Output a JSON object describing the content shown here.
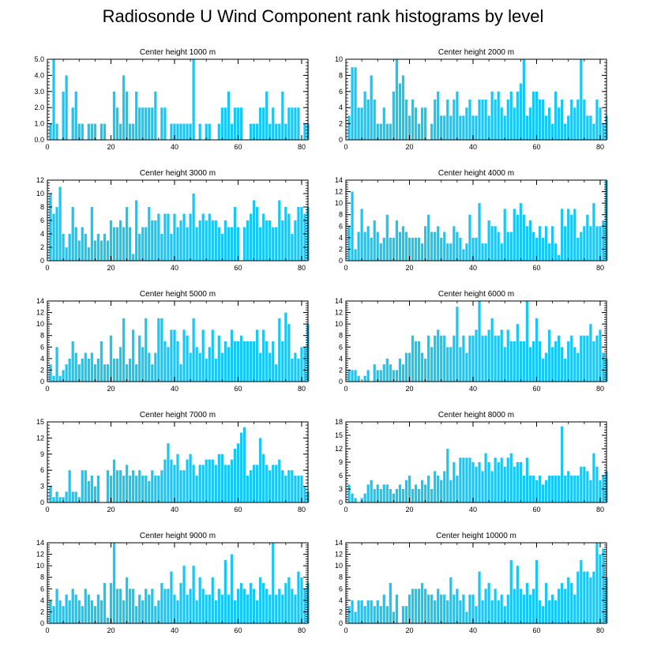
{
  "figure_title": "Radiosonde U Wind Component rank histograms by level",
  "bar_color": "#19C6F4",
  "chart_data": [
    {
      "type": "bar",
      "title": "Center height 1000 m",
      "xlim": [
        0,
        82
      ],
      "ylim": [
        0,
        5
      ],
      "yticks": [
        0,
        1,
        2,
        3,
        4,
        5
      ],
      "ytick_labels": [
        "0.0",
        "1.0",
        "2.0",
        "3.0",
        "4.0",
        "5.0"
      ],
      "xticks": [
        0,
        20,
        40,
        60,
        80
      ],
      "xtick_labels": [
        "0",
        "20",
        "40",
        "60",
        "80"
      ],
      "values": [
        1,
        5,
        1,
        0,
        3,
        4,
        0,
        2,
        3,
        1,
        1,
        0,
        1,
        1,
        1,
        0,
        1,
        1,
        0,
        0,
        3,
        2,
        1,
        4,
        3,
        1,
        1,
        3,
        2,
        2,
        2,
        2,
        2,
        3,
        0,
        2,
        2,
        0,
        1,
        1,
        1,
        1,
        1,
        1,
        1,
        5,
        0,
        1,
        0,
        1,
        1,
        0,
        0,
        1,
        2,
        2,
        3,
        1,
        2,
        2,
        2,
        0,
        0,
        1,
        1,
        1,
        2,
        2,
        3,
        1,
        2,
        1,
        1,
        3,
        1,
        2,
        2,
        2,
        2,
        0,
        1,
        1
      ]
    },
    {
      "type": "bar",
      "title": "Center height 2000 m",
      "xlim": [
        0,
        82
      ],
      "ylim": [
        0,
        10
      ],
      "yticks": [
        0,
        2,
        4,
        6,
        8,
        10
      ],
      "ytick_labels": [
        "0",
        "2",
        "4",
        "6",
        "8",
        "10"
      ],
      "xticks": [
        0,
        20,
        40,
        60,
        80
      ],
      "xtick_labels": [
        "0",
        "20",
        "40",
        "60",
        "80"
      ],
      "values": [
        3,
        9,
        9,
        4,
        4,
        6,
        5,
        8,
        5,
        2,
        2,
        4,
        2,
        2,
        6,
        10,
        7,
        8,
        5,
        3,
        5,
        4,
        2,
        4,
        4,
        0,
        2,
        5,
        6,
        3,
        3,
        5,
        3,
        5,
        6,
        3,
        3,
        4,
        5,
        3,
        3,
        5,
        5,
        5,
        3,
        6,
        5,
        6,
        4,
        3,
        5,
        6,
        4,
        6,
        7,
        10,
        3,
        4,
        6,
        6,
        5,
        5,
        3,
        4,
        2,
        6,
        4,
        5,
        2,
        3,
        5,
        4,
        5,
        10,
        5,
        3,
        3,
        2,
        5,
        4,
        2,
        3
      ]
    },
    {
      "type": "bar",
      "title": "Center height 3000 m",
      "xlim": [
        0,
        82
      ],
      "ylim": [
        0,
        12
      ],
      "yticks": [
        0,
        2,
        4,
        6,
        8,
        10,
        12
      ],
      "ytick_labels": [
        "0",
        "2",
        "4",
        "6",
        "8",
        "10",
        "12"
      ],
      "xticks": [
        0,
        20,
        40,
        60,
        80
      ],
      "xtick_labels": [
        "0",
        "20",
        "40",
        "60",
        "80"
      ],
      "values": [
        10,
        7,
        8,
        11,
        4,
        2,
        4,
        8,
        5,
        3,
        5,
        4,
        2,
        8,
        3,
        4,
        3,
        4,
        3,
        6,
        5,
        5,
        6,
        5,
        8,
        5,
        1,
        9,
        4,
        5,
        5,
        8,
        6,
        6,
        7,
        4,
        7,
        7,
        4,
        7,
        5,
        6,
        7,
        5,
        7,
        10,
        5,
        6,
        7,
        6,
        7,
        6,
        6,
        5,
        4,
        6,
        5,
        5,
        8,
        5,
        0,
        5,
        6,
        7,
        9,
        8,
        5,
        7,
        6,
        6,
        5,
        5,
        9,
        6,
        8,
        7,
        4,
        6,
        8,
        8,
        7,
        8
      ]
    },
    {
      "type": "bar",
      "title": "Center height 4000 m",
      "xlim": [
        0,
        82
      ],
      "ylim": [
        0,
        14
      ],
      "yticks": [
        0,
        2,
        4,
        6,
        8,
        10,
        12,
        14
      ],
      "ytick_labels": [
        "0",
        "2",
        "4",
        "6",
        "8",
        "10",
        "12",
        "14"
      ],
      "xticks": [
        0,
        20,
        40,
        60,
        80
      ],
      "xtick_labels": [
        "0",
        "20",
        "40",
        "60",
        "80"
      ],
      "values": [
        6,
        12,
        2,
        5,
        9,
        5,
        6,
        4,
        7,
        5,
        3,
        4,
        8,
        4,
        4,
        7,
        5,
        6,
        5,
        4,
        4,
        4,
        4,
        3,
        6,
        8,
        5,
        5,
        6,
        4,
        5,
        3,
        3,
        6,
        5,
        4,
        2,
        3,
        8,
        4,
        4,
        10,
        3,
        3,
        7,
        6,
        6,
        5,
        3,
        9,
        5,
        5,
        9,
        8,
        10,
        8,
        6,
        7,
        5,
        4,
        6,
        4,
        6,
        3,
        6,
        3,
        1,
        9,
        6,
        9,
        8,
        9,
        4,
        5,
        6,
        8,
        6,
        10,
        6,
        6,
        7,
        14
      ]
    },
    {
      "type": "bar",
      "title": "Center height 5000 m",
      "xlim": [
        0,
        82
      ],
      "ylim": [
        0,
        14
      ],
      "yticks": [
        0,
        2,
        4,
        6,
        8,
        10,
        12,
        14
      ],
      "ytick_labels": [
        "0",
        "2",
        "4",
        "6",
        "8",
        "10",
        "12",
        "14"
      ],
      "xticks": [
        0,
        20,
        40,
        60,
        80
      ],
      "xtick_labels": [
        "0",
        "20",
        "40",
        "60",
        "80"
      ],
      "values": [
        3,
        1,
        6,
        1,
        2,
        3,
        4,
        7,
        5,
        3,
        4,
        5,
        4,
        5,
        3,
        4,
        7,
        3,
        3,
        8,
        4,
        4,
        6,
        11,
        3,
        4,
        9,
        3,
        8,
        6,
        11,
        5,
        3,
        5,
        11,
        11,
        7,
        6,
        9,
        9,
        7,
        3,
        9,
        8,
        5,
        11,
        6,
        5,
        9,
        4,
        6,
        9,
        4,
        8,
        5,
        7,
        6,
        9,
        7,
        7,
        8,
        7,
        7,
        7,
        7,
        9,
        5,
        9,
        7,
        5,
        7,
        3,
        11,
        7,
        12,
        10,
        4,
        5,
        4,
        6,
        6,
        10
      ]
    },
    {
      "type": "bar",
      "title": "Center height 6000 m",
      "xlim": [
        0,
        82
      ],
      "ylim": [
        0,
        14
      ],
      "yticks": [
        0,
        2,
        4,
        6,
        8,
        10,
        12,
        14
      ],
      "ytick_labels": [
        "0",
        "2",
        "4",
        "6",
        "8",
        "10",
        "12",
        "14"
      ],
      "xticks": [
        0,
        20,
        40,
        60,
        80
      ],
      "xtick_labels": [
        "0",
        "20",
        "40",
        "60",
        "80"
      ],
      "values": [
        2,
        2,
        2,
        1,
        0,
        1,
        2,
        0,
        3,
        2,
        2,
        3,
        4,
        3,
        2,
        2,
        4,
        3,
        5,
        5,
        8,
        7,
        7,
        5,
        4,
        8,
        6,
        8,
        9,
        8,
        8,
        6,
        6,
        8,
        13,
        6,
        8,
        5,
        8,
        8,
        9,
        14,
        8,
        8,
        9,
        11,
        8,
        8,
        9,
        6,
        9,
        7,
        7,
        10,
        7,
        7,
        14,
        6,
        7,
        11,
        7,
        4,
        5,
        9,
        6,
        7,
        8,
        6,
        4,
        7,
        8,
        6,
        5,
        8,
        8,
        8,
        10,
        7,
        8,
        9,
        5,
        4
      ]
    },
    {
      "type": "bar",
      "title": "Center height 7000 m",
      "xlim": [
        0,
        82
      ],
      "ylim": [
        0,
        15
      ],
      "yticks": [
        0,
        3,
        6,
        9,
        12,
        15
      ],
      "ytick_labels": [
        "0",
        "3",
        "6",
        "9",
        "12",
        "15"
      ],
      "xticks": [
        0,
        20,
        40,
        60,
        80
      ],
      "xtick_labels": [
        "0",
        "20",
        "40",
        "60",
        "80"
      ],
      "values": [
        3,
        1,
        2,
        1,
        1,
        2,
        6,
        2,
        2,
        1,
        6,
        6,
        4,
        5,
        3,
        5,
        0,
        0,
        6,
        5,
        8,
        6,
        6,
        5,
        7,
        5,
        6,
        5,
        6,
        5,
        5,
        4,
        6,
        5,
        5,
        6,
        8,
        11,
        8,
        7,
        9,
        6,
        6,
        8,
        9,
        7,
        5,
        7,
        7,
        8,
        8,
        8,
        7,
        9,
        9,
        7,
        7,
        8,
        10,
        11,
        13,
        14,
        5,
        6,
        7,
        7,
        12,
        9,
        7,
        6,
        7,
        7,
        8,
        6,
        5,
        6,
        6,
        5,
        5,
        5,
        3,
        2
      ]
    },
    {
      "type": "bar",
      "title": "Center height 8000 m",
      "xlim": [
        0,
        82
      ],
      "ylim": [
        0,
        18
      ],
      "yticks": [
        0,
        3,
        6,
        9,
        12,
        15,
        18
      ],
      "ytick_labels": [
        "0",
        "3",
        "6",
        "9",
        "12",
        "15",
        "18"
      ],
      "xticks": [
        0,
        20,
        40,
        60,
        80
      ],
      "xtick_labels": [
        "0",
        "20",
        "40",
        "60",
        "80"
      ],
      "values": [
        4,
        2,
        1,
        0,
        1,
        2,
        4,
        5,
        3,
        4,
        3,
        4,
        4,
        3,
        2,
        3,
        4,
        3,
        5,
        6,
        3,
        4,
        3,
        5,
        4,
        6,
        3,
        7,
        6,
        5,
        7,
        12,
        5,
        9,
        6,
        10,
        10,
        10,
        10,
        9,
        8,
        9,
        7,
        11,
        9,
        7,
        10,
        9,
        10,
        8,
        10,
        11,
        8,
        9,
        9,
        6,
        10,
        6,
        6,
        5,
        6,
        4,
        5,
        6,
        6,
        6,
        6,
        17,
        6,
        7,
        6,
        6,
        6,
        8,
        8,
        7,
        5,
        11,
        8,
        5,
        6,
        7
      ]
    },
    {
      "type": "bar",
      "title": "Center height 9000 m",
      "xlim": [
        0,
        82
      ],
      "ylim": [
        0,
        14
      ],
      "yticks": [
        0,
        2,
        4,
        6,
        8,
        10,
        12,
        14
      ],
      "ytick_labels": [
        "0",
        "2",
        "4",
        "6",
        "8",
        "10",
        "12",
        "14"
      ],
      "xticks": [
        0,
        20,
        40,
        60,
        80
      ],
      "xtick_labels": [
        "0",
        "20",
        "40",
        "60",
        "80"
      ],
      "values": [
        4,
        3,
        6,
        4,
        3,
        5,
        4,
        6,
        5,
        4,
        3,
        6,
        5,
        4,
        3,
        5,
        4,
        7,
        1,
        7,
        14,
        6,
        6,
        4,
        8,
        6,
        6,
        3,
        5,
        4,
        6,
        5,
        6,
        3,
        4,
        7,
        6,
        6,
        9,
        5,
        4,
        7,
        10,
        5,
        6,
        10,
        4,
        8,
        6,
        5,
        5,
        8,
        4,
        6,
        5,
        11,
        5,
        12,
        4,
        6,
        7,
        6,
        5,
        7,
        6,
        4,
        8,
        7,
        6,
        5,
        14,
        5,
        6,
        5,
        7,
        8,
        6,
        5,
        9,
        8,
        6,
        7
      ]
    },
    {
      "type": "bar",
      "title": "Center height 10000 m",
      "xlim": [
        0,
        82
      ],
      "ylim": [
        0,
        14
      ],
      "yticks": [
        0,
        2,
        4,
        6,
        8,
        10,
        12,
        14
      ],
      "ytick_labels": [
        "0",
        "2",
        "4",
        "6",
        "8",
        "10",
        "12",
        "14"
      ],
      "xticks": [
        0,
        20,
        40,
        60,
        80
      ],
      "xtick_labels": [
        "0",
        "20",
        "40",
        "60",
        "80"
      ],
      "values": [
        3,
        4,
        2,
        4,
        4,
        3,
        4,
        4,
        3,
        4,
        3,
        5,
        3,
        7,
        2,
        5,
        0,
        3,
        3,
        5,
        6,
        6,
        6,
        7,
        6,
        5,
        5,
        4,
        6,
        5,
        5,
        4,
        8,
        5,
        6,
        4,
        5,
        2,
        5,
        5,
        3,
        9,
        4,
        6,
        7,
        4,
        6,
        4,
        5,
        3,
        5,
        11,
        6,
        10,
        6,
        5,
        7,
        5,
        6,
        11,
        4,
        3,
        7,
        4,
        5,
        4,
        6,
        7,
        6,
        8,
        7,
        5,
        9,
        11,
        9,
        9,
        8,
        9,
        14,
        12,
        13,
        8
      ]
    }
  ]
}
